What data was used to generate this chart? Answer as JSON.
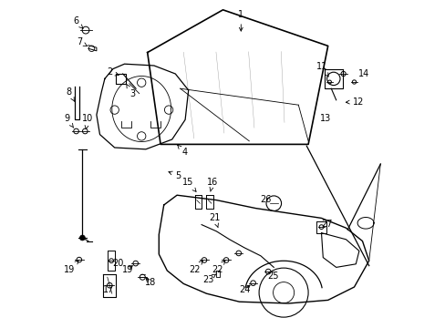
{
  "background_color": "#ffffff",
  "line_color": "#000000",
  "text_color": "#000000",
  "figsize": [
    4.89,
    3.6
  ],
  "dpi": 100,
  "label_fontsize": 7
}
